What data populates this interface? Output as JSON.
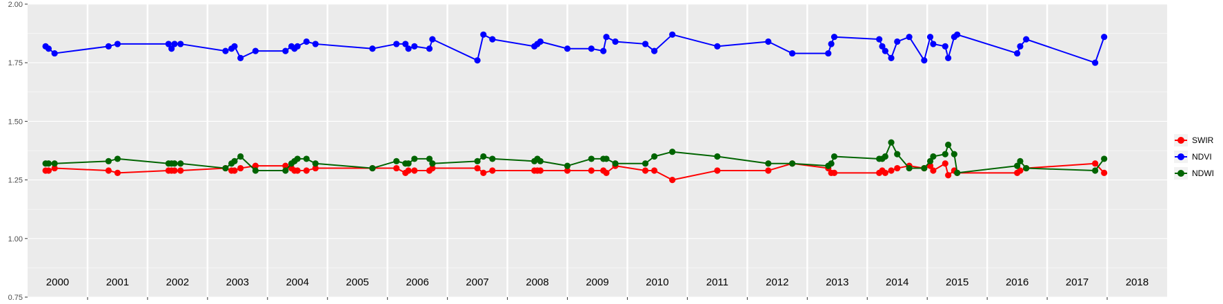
{
  "chart_data": {
    "type": "line",
    "title": "",
    "xlabel": "",
    "ylabel": "",
    "ylim": [
      0.75,
      2.0
    ],
    "xlim": [
      2000.0,
      2019.0
    ],
    "yticks": [
      "0.75",
      "1.00",
      "1.25",
      "1.50",
      "1.75",
      "2.00"
    ],
    "year_labels": [
      "2000",
      "2001",
      "2002",
      "2003",
      "2004",
      "2005",
      "2006",
      "2007",
      "2008",
      "2009",
      "2010",
      "2011",
      "2012",
      "2013",
      "2014",
      "2015",
      "2016",
      "2017",
      "2018"
    ],
    "grid": true,
    "legend_position": "right",
    "x": [
      2000.3,
      2000.35,
      2000.45,
      2001.35,
      2001.5,
      2002.35,
      2002.4,
      2002.45,
      2002.55,
      2003.3,
      2003.4,
      2003.45,
      2003.55,
      2003.8,
      2004.3,
      2004.4,
      2004.45,
      2004.5,
      2004.65,
      2004.8,
      2005.75,
      2006.15,
      2006.3,
      2006.35,
      2006.45,
      2006.7,
      2006.75,
      2007.5,
      2007.6,
      2007.75,
      2008.45,
      2008.5,
      2008.55,
      2009.0,
      2009.4,
      2009.6,
      2009.65,
      2009.8,
      2010.3,
      2010.45,
      2010.75,
      2011.5,
      2012.35,
      2012.75,
      2013.35,
      2013.4,
      2013.45,
      2014.2,
      2014.25,
      2014.3,
      2014.4,
      2014.5,
      2014.7,
      2014.95,
      2015.05,
      2015.1,
      2015.3,
      2015.35,
      2015.45,
      2015.5,
      2016.5,
      2016.55,
      2016.65,
      2017.8,
      2017.95
    ],
    "series": [
      {
        "name": "SWIR",
        "color": "#ff0000",
        "values": [
          1.29,
          1.29,
          1.3,
          1.29,
          1.28,
          1.29,
          1.29,
          1.29,
          1.29,
          1.3,
          1.29,
          1.29,
          1.3,
          1.31,
          1.31,
          1.3,
          1.29,
          1.29,
          1.29,
          1.3,
          1.3,
          1.3,
          1.28,
          1.29,
          1.29,
          1.29,
          1.3,
          1.3,
          1.28,
          1.29,
          1.29,
          1.29,
          1.29,
          1.29,
          1.29,
          1.29,
          1.28,
          1.31,
          1.29,
          1.29,
          1.25,
          1.29,
          1.29,
          1.32,
          1.3,
          1.28,
          1.28,
          1.28,
          1.29,
          1.28,
          1.29,
          1.3,
          1.31,
          1.3,
          1.31,
          1.29,
          1.32,
          1.27,
          1.29,
          1.28,
          1.28,
          1.29,
          1.3,
          1.32,
          1.28
        ]
      },
      {
        "name": "NDVI",
        "color": "#0000ff",
        "values": [
          1.82,
          1.81,
          1.79,
          1.82,
          1.83,
          1.83,
          1.81,
          1.83,
          1.83,
          1.8,
          1.81,
          1.82,
          1.77,
          1.8,
          1.8,
          1.82,
          1.81,
          1.82,
          1.84,
          1.83,
          1.81,
          1.83,
          1.83,
          1.81,
          1.82,
          1.81,
          1.85,
          1.76,
          1.87,
          1.85,
          1.82,
          1.83,
          1.84,
          1.81,
          1.81,
          1.8,
          1.86,
          1.84,
          1.83,
          1.8,
          1.87,
          1.82,
          1.84,
          1.79,
          1.79,
          1.83,
          1.86,
          1.85,
          1.82,
          1.8,
          1.77,
          1.84,
          1.86,
          1.76,
          1.86,
          1.83,
          1.82,
          1.77,
          1.86,
          1.87,
          1.79,
          1.82,
          1.85,
          1.75,
          1.86
        ]
      },
      {
        "name": "NDWI",
        "color": "#006400",
        "values": [
          1.32,
          1.32,
          1.32,
          1.33,
          1.34,
          1.32,
          1.32,
          1.32,
          1.32,
          1.3,
          1.32,
          1.33,
          1.35,
          1.29,
          1.29,
          1.32,
          1.33,
          1.34,
          1.34,
          1.32,
          1.3,
          1.33,
          1.32,
          1.32,
          1.34,
          1.34,
          1.32,
          1.33,
          1.35,
          1.34,
          1.33,
          1.34,
          1.33,
          1.31,
          1.34,
          1.34,
          1.34,
          1.32,
          1.32,
          1.35,
          1.37,
          1.35,
          1.32,
          1.32,
          1.31,
          1.32,
          1.35,
          1.34,
          1.34,
          1.35,
          1.41,
          1.36,
          1.3,
          1.3,
          1.33,
          1.35,
          1.36,
          1.4,
          1.36,
          1.28,
          1.31,
          1.33,
          1.3,
          1.29,
          1.34
        ]
      }
    ]
  }
}
